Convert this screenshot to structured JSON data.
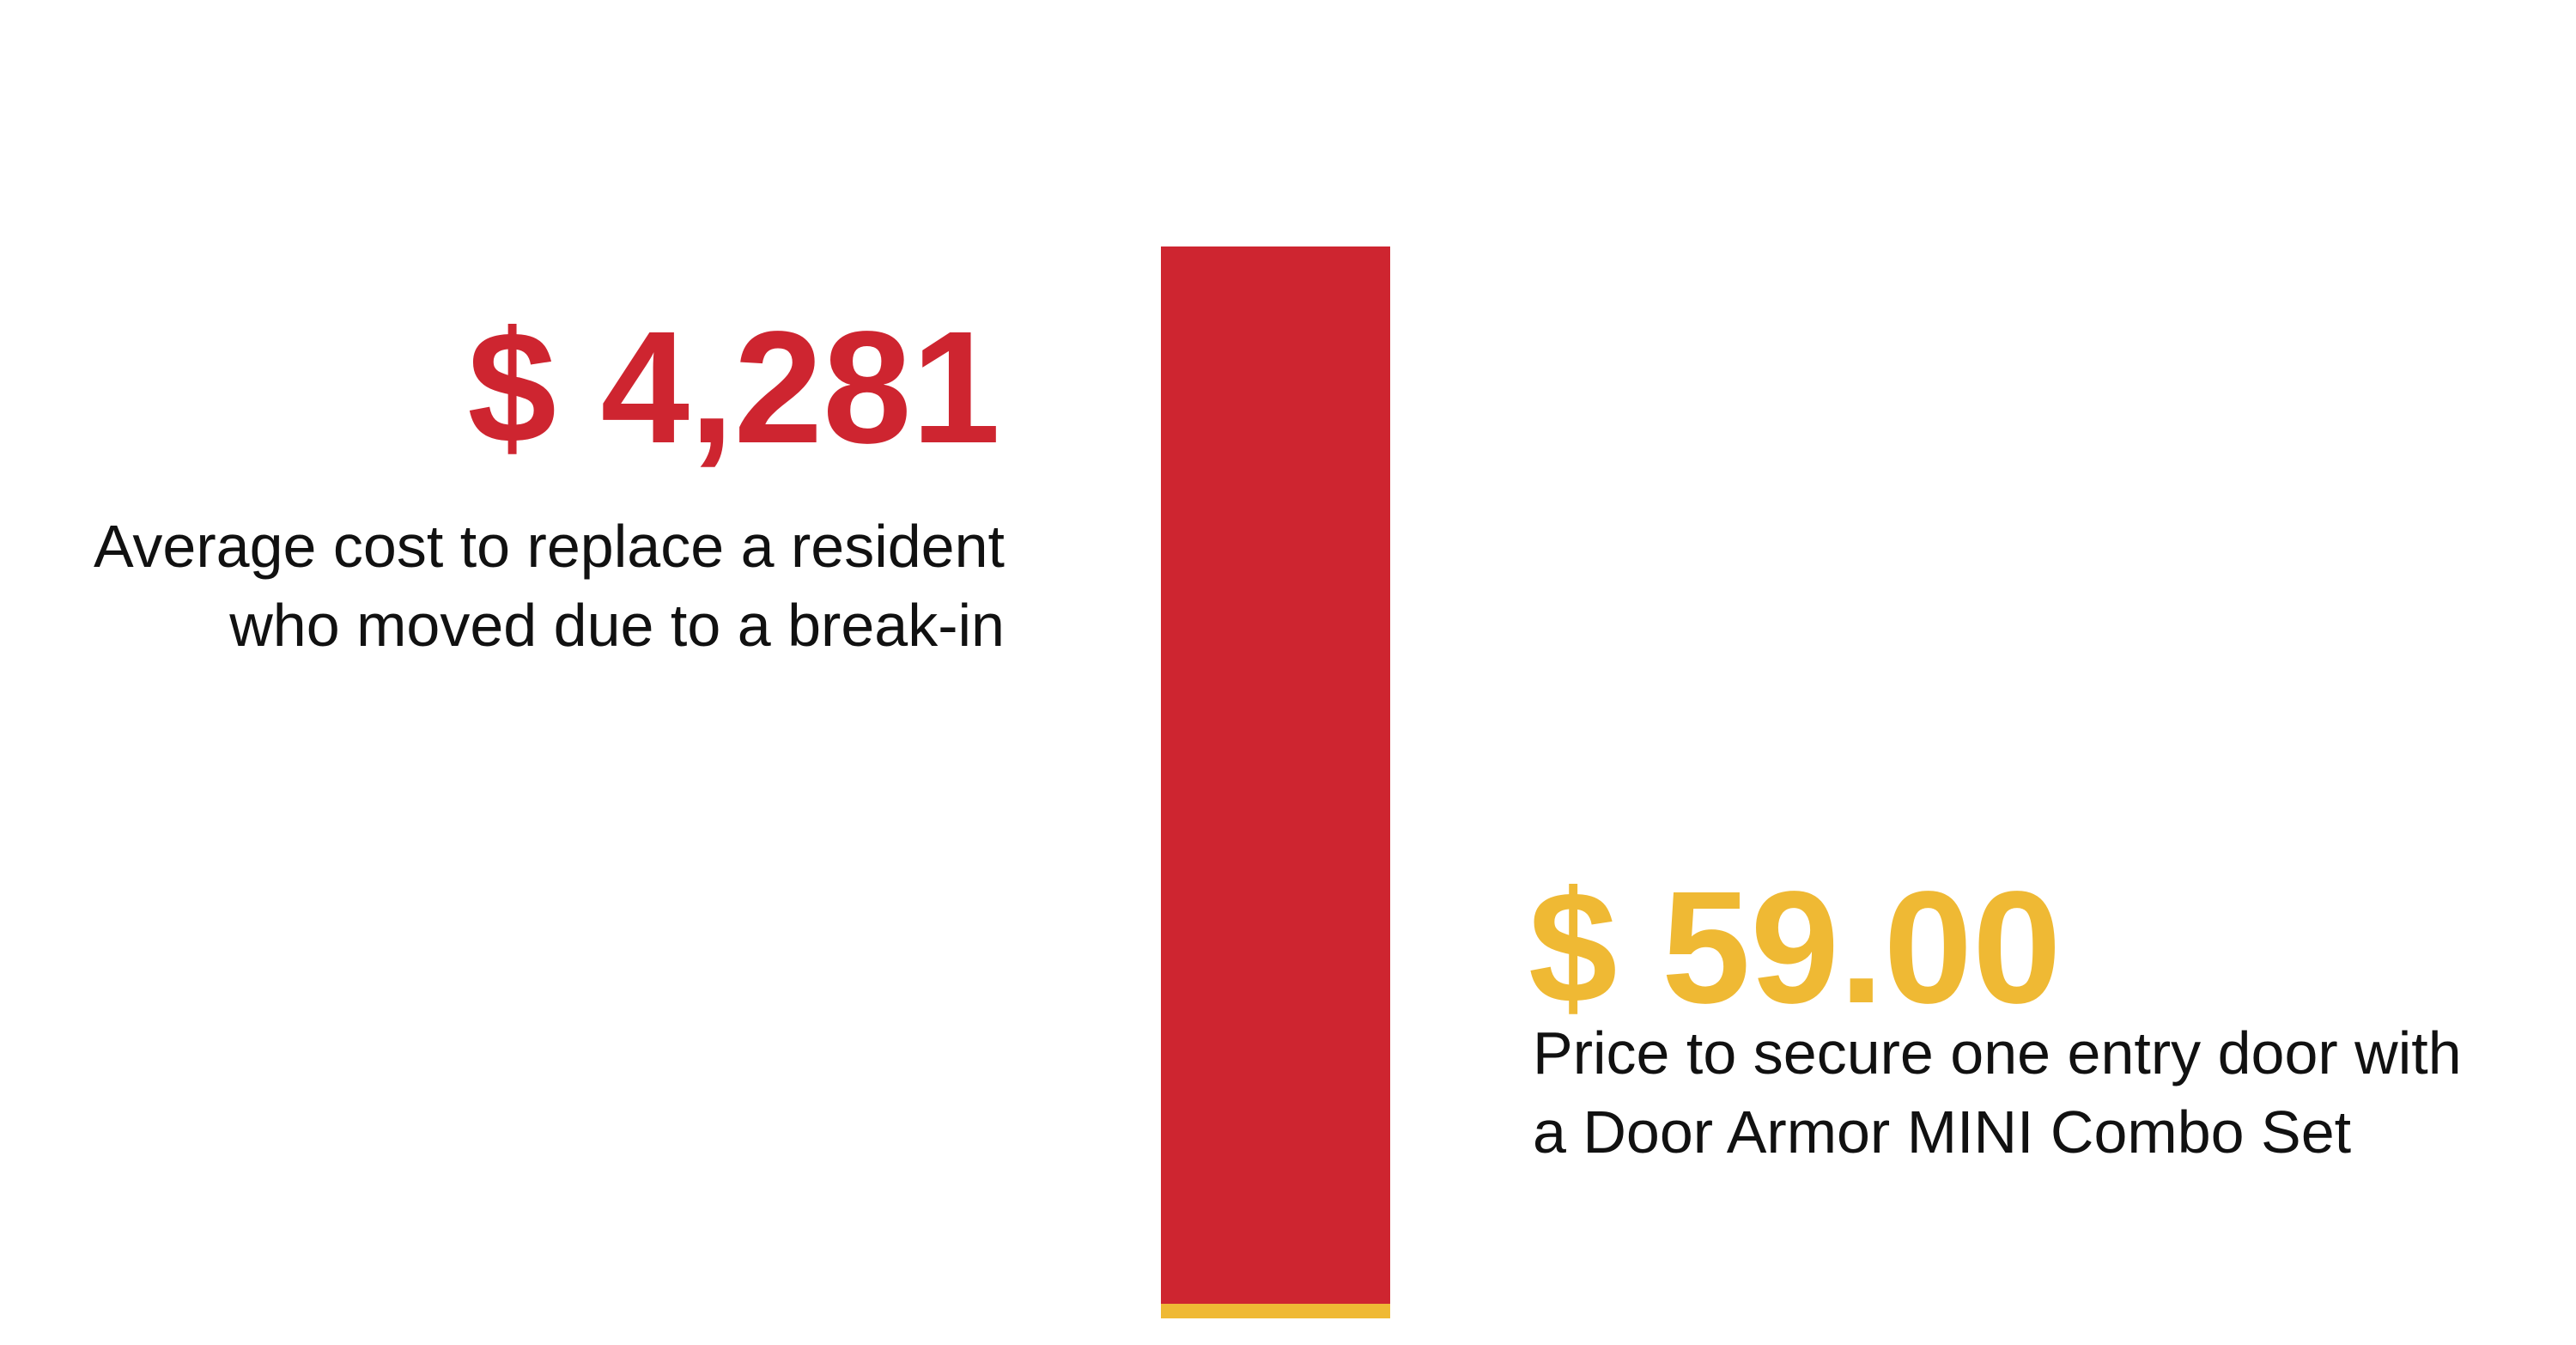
{
  "chart_data": {
    "type": "stacked-bar",
    "series": [
      {
        "color": "#efb934",
        "values": [
          59
        ],
        "value_labels": [
          "$ 59.00"
        ],
        "description": [
          "Price to secure one entry door with",
          "a Door Armor MINI Combo Set"
        ]
      },
      {
        "color": "#ce2530",
        "values": [
          4281
        ],
        "value_labels": [
          "$ 4,281"
        ],
        "description": [
          "Average cost to replace a resident",
          "who moved due to a break-in"
        ]
      }
    ]
  }
}
